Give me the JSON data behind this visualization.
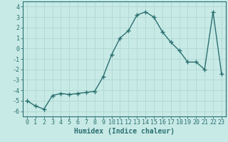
{
  "x": [
    0,
    1,
    2,
    3,
    4,
    5,
    6,
    7,
    8,
    9,
    10,
    11,
    12,
    13,
    14,
    15,
    16,
    17,
    18,
    19,
    20,
    21,
    22,
    23
  ],
  "y": [
    -5.0,
    -5.5,
    -5.8,
    -4.5,
    -4.3,
    -4.4,
    -4.3,
    -4.2,
    -4.1,
    -2.7,
    -0.6,
    1.0,
    1.7,
    3.2,
    3.5,
    3.0,
    1.6,
    0.6,
    -0.2,
    -1.3,
    -1.3,
    -2.0,
    3.5,
    -2.4
  ],
  "title": "",
  "xlabel": "Humidex (Indice chaleur)",
  "ylabel": "",
  "bg_color": "#c8eae6",
  "grid_color": "#b0d8d4",
  "line_color": "#2a7070",
  "marker": "+",
  "xlim": [
    -0.5,
    23.5
  ],
  "ylim": [
    -6.5,
    4.5
  ],
  "yticks": [
    -6,
    -5,
    -4,
    -3,
    -2,
    -1,
    0,
    1,
    2,
    3,
    4
  ],
  "xticks": [
    0,
    1,
    2,
    3,
    4,
    5,
    6,
    7,
    8,
    9,
    10,
    11,
    12,
    13,
    14,
    15,
    16,
    17,
    18,
    19,
    20,
    21,
    22,
    23
  ],
  "xlabel_fontsize": 7,
  "tick_fontsize": 6,
  "linewidth": 1.0,
  "markersize": 4,
  "markeredgewidth": 1.0
}
